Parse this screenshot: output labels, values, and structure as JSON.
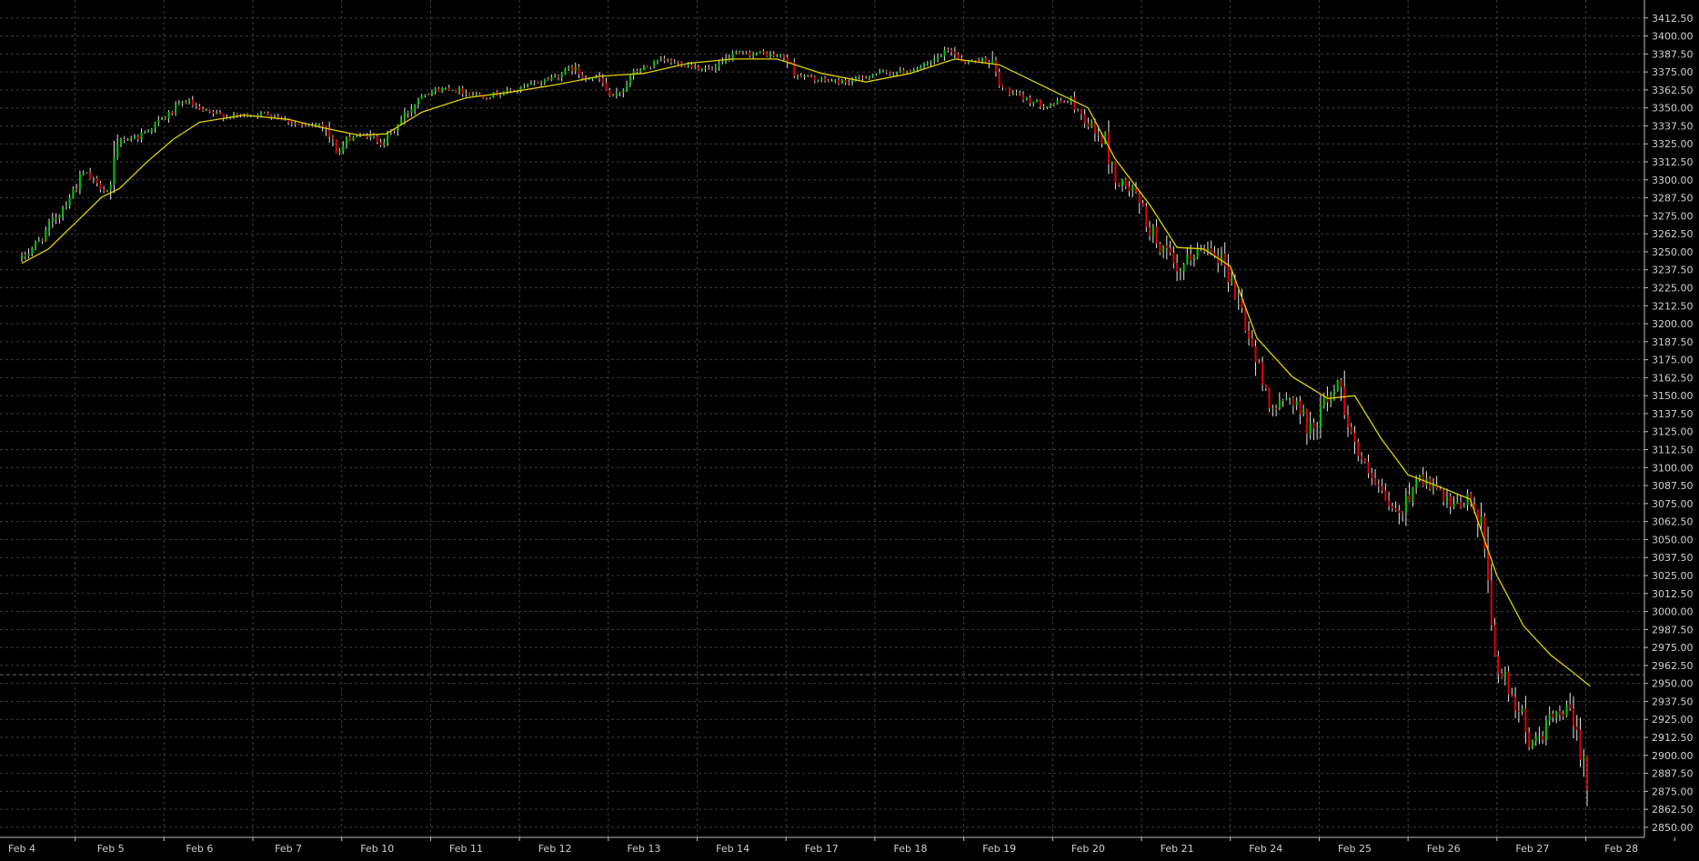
{
  "chart_data": {
    "type": "candlestick",
    "title": "",
    "xlabel": "",
    "ylabel": "",
    "background": "#000000",
    "grid": true,
    "grid_color": "#3a3a3a",
    "up_color": "#00c800",
    "down_color": "#e00000",
    "wick_color": "#e6e6e6",
    "ma_color": "#e0d000",
    "current_price_line": 2956,
    "ylim": [
      2843,
      3425
    ],
    "y_ticks": [
      "3412.50",
      "3400.00",
      "3387.50",
      "3375.00",
      "3362.50",
      "3350.00",
      "3337.50",
      "3325.00",
      "3312.50",
      "3300.00",
      "3287.50",
      "3275.00",
      "3262.50",
      "3250.00",
      "3237.50",
      "3225.00",
      "3212.50",
      "3200.00",
      "3187.50",
      "3175.00",
      "3162.50",
      "3150.00",
      "3137.50",
      "3125.00",
      "3112.50",
      "3100.00",
      "3087.50",
      "3075.00",
      "3062.50",
      "3050.00",
      "3037.50",
      "3025.00",
      "3012.50",
      "3000.00",
      "2987.50",
      "2975.00",
      "2962.50",
      "2950.00",
      "2937.50",
      "2925.00",
      "2912.50",
      "2900.00",
      "2887.50",
      "2875.00",
      "2862.50",
      "2850.00"
    ],
    "categories": [
      "Feb 4",
      "Feb 5",
      "Feb 6",
      "Feb 7",
      "Feb 10",
      "Feb 11",
      "Feb 12",
      "Feb 13",
      "Feb 14",
      "Feb 17",
      "Feb 18",
      "Feb 19",
      "Feb 20",
      "Feb 21",
      "Feb 24",
      "Feb 25",
      "Feb 26",
      "Feb 27",
      "Feb 28"
    ],
    "close_path": [
      [
        0,
        3245
      ],
      [
        0.25,
        3262
      ],
      [
        0.5,
        3285
      ],
      [
        0.7,
        3305
      ],
      [
        0.85,
        3296
      ],
      [
        1.0,
        3292
      ],
      [
        1.1,
        3328
      ],
      [
        1.3,
        3330
      ],
      [
        1.6,
        3343
      ],
      [
        1.85,
        3355
      ],
      [
        2.0,
        3348
      ],
      [
        2.3,
        3344
      ],
      [
        2.8,
        3346
      ],
      [
        3.0,
        3341
      ],
      [
        3.2,
        3336
      ],
      [
        3.4,
        3340
      ],
      [
        3.55,
        3318
      ],
      [
        3.7,
        3330
      ],
      [
        3.9,
        3331
      ],
      [
        4.05,
        3326
      ],
      [
        4.2,
        3336
      ],
      [
        4.5,
        3360
      ],
      [
        4.8,
        3364
      ],
      [
        5.2,
        3358
      ],
      [
        5.6,
        3363
      ],
      [
        6.0,
        3372
      ],
      [
        6.2,
        3378
      ],
      [
        6.3,
        3372
      ],
      [
        6.5,
        3370
      ],
      [
        6.65,
        3355
      ],
      [
        6.9,
        3375
      ],
      [
        7.2,
        3383
      ],
      [
        7.5,
        3380
      ],
      [
        7.8,
        3376
      ],
      [
        8.0,
        3387
      ],
      [
        8.3,
        3388
      ],
      [
        8.6,
        3385
      ],
      [
        8.7,
        3373
      ],
      [
        9.0,
        3369
      ],
      [
        9.3,
        3368
      ],
      [
        9.6,
        3374
      ],
      [
        9.9,
        3375
      ],
      [
        10.2,
        3380
      ],
      [
        10.45,
        3391
      ],
      [
        10.6,
        3382
      ],
      [
        10.9,
        3384
      ],
      [
        11.0,
        3365
      ],
      [
        11.2,
        3358
      ],
      [
        11.5,
        3352
      ],
      [
        11.8,
        3355
      ],
      [
        12.05,
        3335
      ],
      [
        12.2,
        3325
      ],
      [
        12.3,
        3300
      ],
      [
        12.5,
        3292
      ],
      [
        12.7,
        3265
      ],
      [
        12.9,
        3246
      ],
      [
        13.0,
        3232
      ],
      [
        13.2,
        3250
      ],
      [
        13.4,
        3254
      ],
      [
        13.55,
        3240
      ],
      [
        13.75,
        3205
      ],
      [
        13.95,
        3160
      ],
      [
        14.1,
        3140
      ],
      [
        14.3,
        3150
      ],
      [
        14.5,
        3125
      ],
      [
        14.7,
        3150
      ],
      [
        14.85,
        3160
      ],
      [
        14.95,
        3125
      ],
      [
        15.1,
        3100
      ],
      [
        15.3,
        3080
      ],
      [
        15.5,
        3065
      ],
      [
        15.7,
        3095
      ],
      [
        15.9,
        3085
      ],
      [
        16.1,
        3070
      ],
      [
        16.3,
        3080
      ],
      [
        16.45,
        3050
      ],
      [
        16.6,
        2962
      ],
      [
        16.8,
        2940
      ],
      [
        17.0,
        2905
      ],
      [
        17.2,
        2925
      ],
      [
        17.4,
        2930
      ],
      [
        17.55,
        2905
      ],
      [
        17.65,
        2875
      ]
    ],
    "ma_path": [
      [
        0,
        3242
      ],
      [
        0.3,
        3252
      ],
      [
        0.6,
        3270
      ],
      [
        0.9,
        3288
      ],
      [
        1.1,
        3294
      ],
      [
        1.4,
        3312
      ],
      [
        1.7,
        3328
      ],
      [
        2.0,
        3340
      ],
      [
        2.5,
        3345
      ],
      [
        3.0,
        3342
      ],
      [
        3.4,
        3336
      ],
      [
        3.8,
        3331
      ],
      [
        4.1,
        3332
      ],
      [
        4.5,
        3347
      ],
      [
        5.0,
        3357
      ],
      [
        5.5,
        3361
      ],
      [
        6.0,
        3366
      ],
      [
        6.5,
        3372
      ],
      [
        7.0,
        3374
      ],
      [
        7.5,
        3381
      ],
      [
        8.0,
        3384
      ],
      [
        8.5,
        3384
      ],
      [
        9.0,
        3374
      ],
      [
        9.5,
        3368
      ],
      [
        10.0,
        3374
      ],
      [
        10.5,
        3384
      ],
      [
        11.0,
        3380
      ],
      [
        11.5,
        3365
      ],
      [
        12.0,
        3350
      ],
      [
        12.3,
        3315
      ],
      [
        12.7,
        3282
      ],
      [
        13.0,
        3253
      ],
      [
        13.3,
        3252
      ],
      [
        13.6,
        3240
      ],
      [
        13.9,
        3190
      ],
      [
        14.3,
        3163
      ],
      [
        14.7,
        3148
      ],
      [
        15.0,
        3150
      ],
      [
        15.3,
        3120
      ],
      [
        15.6,
        3095
      ],
      [
        15.9,
        3088
      ],
      [
        16.3,
        3078
      ],
      [
        16.6,
        3025
      ],
      [
        16.9,
        2990
      ],
      [
        17.2,
        2970
      ],
      [
        17.45,
        2958
      ],
      [
        17.65,
        2948
      ]
    ]
  }
}
